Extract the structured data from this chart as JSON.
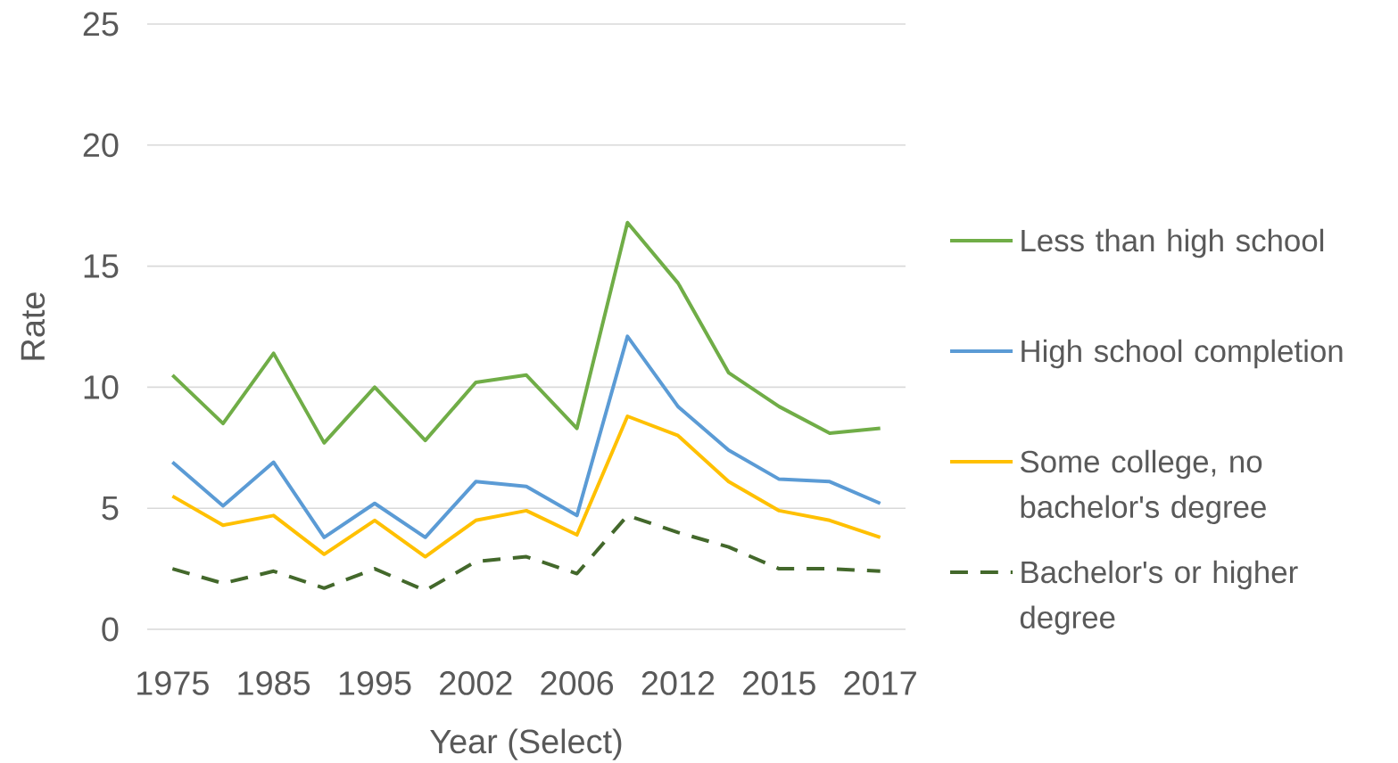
{
  "chart_data": {
    "type": "line",
    "xlabel": "Year (Select)",
    "ylabel": "Rate",
    "categories": [
      "1975",
      null,
      "1985",
      null,
      "1995",
      null,
      "2002",
      null,
      "2006",
      null,
      "2012",
      null,
      "2015",
      null,
      "2017"
    ],
    "ylim": [
      0,
      25
    ],
    "yticks": [
      0,
      5,
      10,
      15,
      20,
      25
    ],
    "grid": "y",
    "legend": "right",
    "marker": "none",
    "series": [
      {
        "name": "Less than high school",
        "color": "#70ad47",
        "line_style": "solid",
        "values": [
          10.5,
          8.5,
          11.4,
          7.7,
          10.0,
          7.8,
          10.2,
          10.5,
          8.3,
          16.8,
          14.3,
          10.6,
          9.2,
          8.1,
          8.3
        ]
      },
      {
        "name": "High school completion",
        "color": "#5b9bd5",
        "line_style": "solid",
        "values": [
          6.9,
          5.1,
          6.9,
          3.8,
          5.2,
          3.8,
          6.1,
          5.9,
          4.7,
          12.1,
          9.2,
          7.4,
          6.2,
          6.1,
          5.2
        ]
      },
      {
        "name": "Some college, no bachelor's degree",
        "color": "#ffc000",
        "line_style": "solid",
        "values": [
          5.5,
          4.3,
          4.7,
          3.1,
          4.5,
          3.0,
          4.5,
          4.9,
          3.9,
          8.8,
          8.0,
          6.1,
          4.9,
          4.5,
          3.8
        ]
      },
      {
        "name": "Bachelor's or higher degree",
        "color": "#43682b",
        "line_style": "dashed",
        "values": [
          2.5,
          1.9,
          2.4,
          1.7,
          2.5,
          1.6,
          2.8,
          3.0,
          2.3,
          4.7,
          4.0,
          3.4,
          2.5,
          2.5,
          2.4
        ]
      }
    ]
  }
}
